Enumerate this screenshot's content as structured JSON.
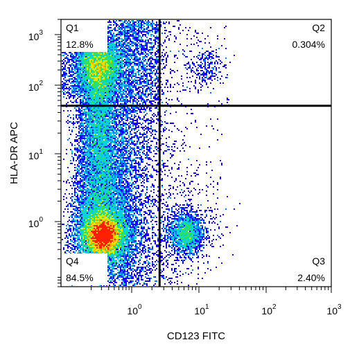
{
  "chart_data": {
    "type": "scatter",
    "subtype": "flow-cytometry-density-dot-plot",
    "xlabel": "CD123 FITC",
    "ylabel": "HLA-DR APC",
    "x_scale": "log",
    "y_scale": "log",
    "xlim": [
      0.06,
      1000
    ],
    "ylim": [
      0.06,
      2000
    ],
    "x_ticks": [
      {
        "base": "10",
        "exp": "0",
        "value": 1
      },
      {
        "base": "10",
        "exp": "1",
        "value": 10
      },
      {
        "base": "10",
        "exp": "2",
        "value": 100
      },
      {
        "base": "10",
        "exp": "3",
        "value": 1000
      }
    ],
    "y_ticks": [
      {
        "base": "10",
        "exp": "0",
        "value": 1
      },
      {
        "base": "10",
        "exp": "1",
        "value": 10
      },
      {
        "base": "10",
        "exp": "2",
        "value": 100
      },
      {
        "base": "10",
        "exp": "3",
        "value": 1000
      }
    ],
    "gates": {
      "x": 2.6,
      "y": 50
    },
    "quadrants": [
      {
        "name": "Q1",
        "percent": "12.8%",
        "position": "top-left"
      },
      {
        "name": "Q2",
        "percent": "0.304%",
        "position": "top-right"
      },
      {
        "name": "Q3",
        "percent": "2.40%",
        "position": "bottom-right"
      },
      {
        "name": "Q4",
        "percent": "84.5%",
        "position": "bottom-left"
      }
    ],
    "populations": [
      {
        "quadrant": "Q4",
        "x_center": 0.32,
        "y_center": 0.55,
        "share": 0.845
      },
      {
        "quadrant": "Q1",
        "x_center": 0.27,
        "y_center": 300,
        "share": 0.128
      },
      {
        "quadrant": "Q3",
        "x_center": 6.5,
        "y_center": 0.6,
        "share": 0.024
      },
      {
        "quadrant": "Q2",
        "x_center": 12,
        "y_center": 300,
        "share": 0.003
      }
    ],
    "color_scale": [
      "#1500ff",
      "#0078ff",
      "#00d0e0",
      "#30e060",
      "#d8f000",
      "#ffb000",
      "#ff2000"
    ],
    "grid": false
  }
}
